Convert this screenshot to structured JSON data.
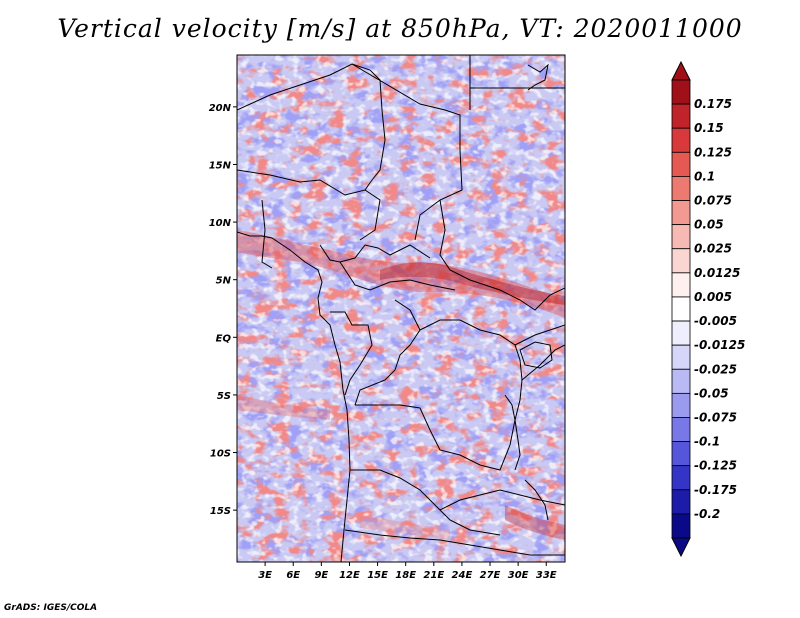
{
  "title": "Vertical velocity [m/s] at 850hPa, VT: 2020011000",
  "credit": "GrADS: IGES/COLA",
  "map": {
    "lat_range": [
      -19.5,
      24.5
    ],
    "lon_range": [
      0,
      35
    ],
    "lat_ticks": [
      {
        "value": 20,
        "label": "20N"
      },
      {
        "value": 15,
        "label": "15N"
      },
      {
        "value": 10,
        "label": "10N"
      },
      {
        "value": 5,
        "label": "5N"
      },
      {
        "value": 0,
        "label": "EQ"
      },
      {
        "value": -5,
        "label": "5S"
      },
      {
        "value": -10,
        "label": "10S"
      },
      {
        "value": -15,
        "label": "15S"
      }
    ],
    "lon_ticks": [
      {
        "value": 3,
        "label": "3E"
      },
      {
        "value": 6,
        "label": "6E"
      },
      {
        "value": 9,
        "label": "9E"
      },
      {
        "value": 12,
        "label": "12E"
      },
      {
        "value": 15,
        "label": "15E"
      },
      {
        "value": 18,
        "label": "18E"
      },
      {
        "value": 21,
        "label": "21E"
      },
      {
        "value": 24,
        "label": "24E"
      },
      {
        "value": 27,
        "label": "27E"
      },
      {
        "value": 30,
        "label": "30E"
      },
      {
        "value": 33,
        "label": "33E"
      }
    ]
  },
  "colorbar": {
    "labels": [
      "0.175",
      "0.15",
      "0.125",
      "0.1",
      "0.075",
      "0.05",
      "0.025",
      "0.0125",
      "0.005",
      "-0.005",
      "-0.0125",
      "-0.025",
      "-0.05",
      "-0.075",
      "-0.1",
      "-0.125",
      "-0.175",
      "-0.2"
    ],
    "colors": [
      "#a01018",
      "#c0242a",
      "#d8393a",
      "#e45a52",
      "#ec7a70",
      "#f29a92",
      "#f6b9b3",
      "#f9d6d2",
      "#fdf0ee",
      "#ffffff",
      "#eeeefc",
      "#d6d6f8",
      "#b9b9f4",
      "#9a9aee",
      "#7878e6",
      "#5656da",
      "#3434c6",
      "#1c1ca8",
      "#0a0a88"
    ]
  }
}
